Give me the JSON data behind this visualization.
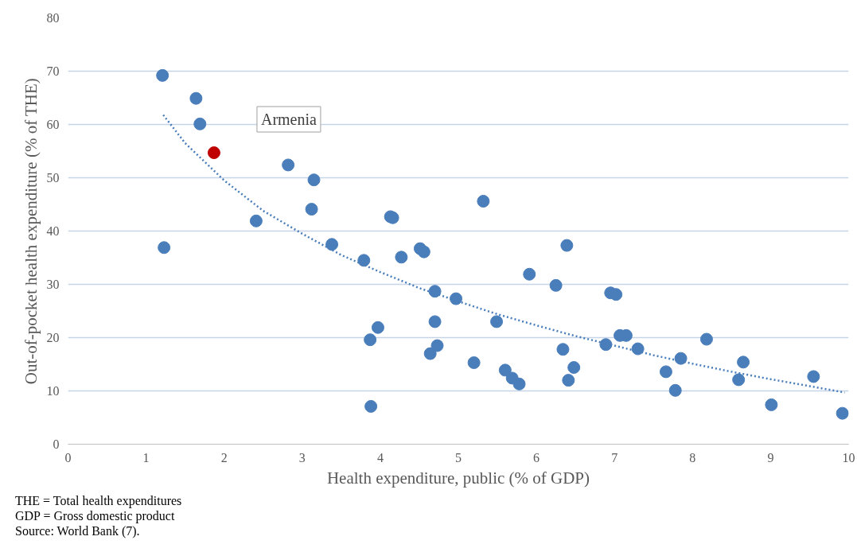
{
  "chart_data": {
    "type": "scatter",
    "xlabel": "Health expenditure, public (% of GDP)",
    "ylabel": "Out-of-pocket health expenditure (% of THE)",
    "xlim": [
      0,
      10
    ],
    "ylim": [
      0,
      80
    ],
    "xticks": [
      0,
      1,
      2,
      3,
      4,
      5,
      6,
      7,
      8,
      9,
      10
    ],
    "yticks": [
      0,
      10,
      20,
      30,
      40,
      50,
      60,
      70,
      80
    ],
    "grid": "y",
    "marker": "circle",
    "series": [
      {
        "color": "#4a7ebb",
        "x": [
          1.21,
          1.64,
          1.69,
          1.23,
          2.82,
          3.15,
          3.12,
          2.41,
          3.38,
          3.79,
          4.13,
          4.16,
          4.27,
          4.51,
          4.56,
          5.32,
          4.7,
          4.97,
          3.97,
          3.87,
          4.7,
          4.73,
          4.64,
          3.88,
          5.2,
          5.49,
          5.6,
          5.69,
          5.78,
          5.91,
          6.25,
          6.39,
          6.34,
          6.48,
          6.41,
          6.95,
          7.02,
          7.07,
          7.15,
          6.89,
          7.3,
          7.66,
          7.78,
          7.85,
          8.18,
          8.65,
          8.59,
          9.01,
          9.55,
          9.92
        ],
        "values": [
          69.2,
          64.9,
          60.1,
          36.9,
          52.4,
          49.6,
          44.1,
          41.9,
          37.5,
          34.5,
          42.7,
          42.5,
          35.1,
          36.7,
          36.1,
          45.6,
          28.7,
          27.3,
          21.9,
          19.6,
          23.0,
          18.5,
          17.0,
          7.1,
          15.3,
          23.0,
          13.9,
          12.4,
          11.3,
          31.9,
          29.8,
          37.3,
          17.8,
          14.4,
          12.0,
          28.4,
          28.1,
          20.4,
          20.4,
          18.7,
          17.9,
          13.6,
          10.1,
          16.1,
          19.7,
          15.4,
          12.1,
          7.4,
          12.7,
          5.8
        ]
      },
      {
        "name": "Armenia",
        "color": "#c00000",
        "x": [
          1.87
        ],
        "values": [
          54.7
        ]
      },
      {
        "type": "line",
        "color": "#4a7ebb",
        "line_style": "dotted",
        "marker": "none",
        "x": [
          1.22,
          1.5,
          2,
          2.5,
          3,
          3.5,
          4,
          4.5,
          5,
          5.5,
          6,
          6.5,
          7,
          7.5,
          8,
          8.5,
          9,
          9.5,
          9.95
        ],
        "values": [
          61.8,
          56.5,
          49.5,
          43.8,
          39.5,
          35.5,
          32.3,
          29.3,
          26.8,
          24.4,
          22.3,
          20.3,
          18.5,
          16.7,
          15.1,
          13.6,
          12.2,
          10.9,
          9.7
        ]
      }
    ],
    "annotations": [
      "THE = Total health expenditures",
      "GDP = Gross domestic product",
      "Source: World Bank (7)."
    ]
  }
}
